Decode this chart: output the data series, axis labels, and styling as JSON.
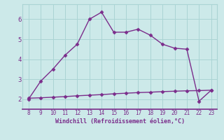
{
  "xlabel": "Windchill (Refroidissement éolien,°C)",
  "line1_x": [
    8,
    9,
    10,
    11,
    12,
    13,
    14,
    15,
    16,
    17,
    18,
    19,
    20,
    21,
    22,
    23
  ],
  "line1_y": [
    2.0,
    2.9,
    3.5,
    4.2,
    4.75,
    6.0,
    6.35,
    5.35,
    5.35,
    5.5,
    5.2,
    4.75,
    4.55,
    4.5,
    1.9,
    2.45
  ],
  "line2_x": [
    8,
    9,
    10,
    11,
    12,
    13,
    14,
    15,
    16,
    17,
    18,
    19,
    20,
    21,
    22,
    23
  ],
  "line2_y": [
    2.05,
    2.07,
    2.1,
    2.13,
    2.17,
    2.2,
    2.23,
    2.27,
    2.3,
    2.33,
    2.35,
    2.38,
    2.4,
    2.42,
    2.43,
    2.45
  ],
  "line_color": "#7b2d8b",
  "bg_color": "#cce9e9",
  "grid_color": "#aad4d4",
  "xlim": [
    7.5,
    23.5
  ],
  "ylim": [
    1.5,
    6.75
  ],
  "xticks": [
    8,
    9,
    10,
    11,
    12,
    13,
    14,
    15,
    16,
    17,
    18,
    19,
    20,
    21,
    22,
    23
  ],
  "yticks": [
    2,
    3,
    4,
    5,
    6
  ],
  "tick_color": "#7b2d8b",
  "label_color": "#7b2d8b",
  "markersize": 2.5,
  "linewidth": 1.0
}
